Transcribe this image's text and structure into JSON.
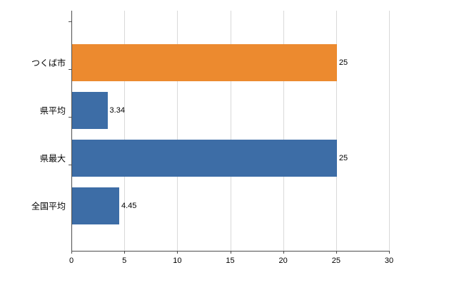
{
  "chart_data": {
    "type": "bar",
    "orientation": "horizontal",
    "title": "",
    "xlabel": "",
    "ylabel": "",
    "categories": [
      "つくば市",
      "県平均",
      "県最大",
      "全国平均"
    ],
    "values": [
      25,
      3.34,
      25,
      4.45
    ],
    "value_labels": [
      "25",
      "3.34",
      "25",
      "4.45"
    ],
    "bar_colors": [
      "#EC8A2F",
      "#3D6DA6",
      "#3D6DA6",
      "#3D6DA6"
    ],
    "xlim": [
      0,
      30
    ],
    "x_ticks": [
      0,
      5,
      10,
      15,
      20,
      25,
      30
    ],
    "grid": true,
    "legend": "none",
    "background_color": "#FFFFFF",
    "gridline_color": "#D9D9D9",
    "axis_color": "#4D4D4D",
    "text_color": "#000000"
  }
}
